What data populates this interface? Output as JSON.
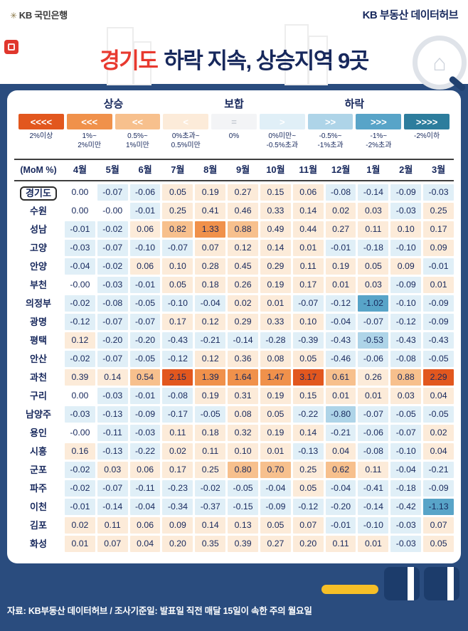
{
  "header": {
    "bank_logo_text": "KB 국민은행",
    "datahub_logo_text": "KB 부동산 데이터허브"
  },
  "title": {
    "highlight": "경기도",
    "rest": "하락 지속, 상승지역 9곳"
  },
  "legend": {
    "groups": [
      {
        "label": "상승",
        "span": 4
      },
      {
        "label": "보합",
        "span": 1
      },
      {
        "label": "하락",
        "span": 4
      }
    ],
    "tiers": [
      {
        "symbol": "<<<<",
        "label": "2%이상",
        "color": "#e2571e",
        "symbol_color": "#ffffff"
      },
      {
        "symbol": "<<<",
        "label": "1%~\n2%미만",
        "color": "#f0914b",
        "symbol_color": "#ffffff"
      },
      {
        "symbol": "<<",
        "label": "0.5%~\n1%미만",
        "color": "#f7c08d",
        "symbol_color": "#ffffff"
      },
      {
        "symbol": "<",
        "label": "0%초과~\n0.5%미만",
        "color": "#fcebd9",
        "symbol_color": "#ffffff"
      },
      {
        "symbol": "=",
        "label": "0%",
        "color": "#f3f4f6",
        "symbol_color": "#c4cad2"
      },
      {
        "symbol": ">",
        "label": "0%미만~\n-0.5%초과",
        "color": "#e0eff7",
        "symbol_color": "#ffffff"
      },
      {
        "symbol": ">>",
        "label": "-0.5%~\n-1%초과",
        "color": "#aed4e8",
        "symbol_color": "#ffffff"
      },
      {
        "symbol": ">>>",
        "label": "-1%~\n-2%초과",
        "color": "#58a4c8",
        "symbol_color": "#ffffff"
      },
      {
        "symbol": ">>>>",
        "label": "-2%이하",
        "color": "#2d7d9d",
        "symbol_color": "#ffffff"
      }
    ]
  },
  "chart_data": {
    "type": "heatmap",
    "title": "경기도 하락 지속, 상승지역 9곳",
    "unit": "(MoM %)",
    "legend_position": "top",
    "x_categories": [
      "4월",
      "5월",
      "6월",
      "7월",
      "8월",
      "9월",
      "10월",
      "11월",
      "12월",
      "1월",
      "2월",
      "3월"
    ],
    "rows": [
      {
        "name": "경기도",
        "highlight": true,
        "values": [
          "0.00",
          "-0.07",
          "-0.06",
          "0.05",
          "0.19",
          "0.27",
          "0.15",
          "0.06",
          "-0.08",
          "-0.14",
          "-0.09",
          "-0.03"
        ]
      },
      {
        "name": "수원",
        "highlight": false,
        "values": [
          "0.00",
          "-0.00",
          "-0.01",
          "0.25",
          "0.41",
          "0.46",
          "0.33",
          "0.14",
          "0.02",
          "0.03",
          "-0.03",
          "0.25"
        ]
      },
      {
        "name": "성남",
        "highlight": false,
        "values": [
          "-0.01",
          "-0.02",
          "0.06",
          "0.82",
          "1.33",
          "0.88",
          "0.49",
          "0.44",
          "0.27",
          "0.11",
          "0.10",
          "0.17"
        ]
      },
      {
        "name": "고양",
        "highlight": false,
        "values": [
          "-0.03",
          "-0.07",
          "-0.10",
          "-0.07",
          "0.07",
          "0.12",
          "0.14",
          "0.01",
          "-0.01",
          "-0.18",
          "-0.10",
          "0.09"
        ]
      },
      {
        "name": "안양",
        "highlight": false,
        "values": [
          "-0.04",
          "-0.02",
          "0.06",
          "0.10",
          "0.28",
          "0.45",
          "0.29",
          "0.11",
          "0.19",
          "0.05",
          "0.09",
          "-0.01"
        ]
      },
      {
        "name": "부천",
        "highlight": false,
        "values": [
          "-0.00",
          "-0.03",
          "-0.01",
          "0.05",
          "0.18",
          "0.26",
          "0.19",
          "0.17",
          "0.01",
          "0.03",
          "-0.09",
          "0.01"
        ]
      },
      {
        "name": "의정부",
        "highlight": false,
        "values": [
          "-0.02",
          "-0.08",
          "-0.05",
          "-0.10",
          "-0.04",
          "0.02",
          "0.01",
          "-0.07",
          "-0.12",
          "-1.02",
          "-0.10",
          "-0.09"
        ]
      },
      {
        "name": "광명",
        "highlight": false,
        "values": [
          "-0.12",
          "-0.07",
          "-0.07",
          "0.17",
          "0.12",
          "0.29",
          "0.33",
          "0.10",
          "-0.04",
          "-0.07",
          "-0.12",
          "-0.09"
        ]
      },
      {
        "name": "평택",
        "highlight": false,
        "values": [
          "0.12",
          "-0.20",
          "-0.20",
          "-0.43",
          "-0.21",
          "-0.14",
          "-0.28",
          "-0.39",
          "-0.43",
          "-0.53",
          "-0.43",
          "-0.43"
        ]
      },
      {
        "name": "안산",
        "highlight": false,
        "values": [
          "-0.02",
          "-0.07",
          "-0.05",
          "-0.12",
          "0.12",
          "0.36",
          "0.08",
          "0.05",
          "-0.46",
          "-0.06",
          "-0.08",
          "-0.05"
        ]
      },
      {
        "name": "과천",
        "highlight": false,
        "values": [
          "0.39",
          "0.14",
          "0.54",
          "2.15",
          "1.39",
          "1.64",
          "1.47",
          "3.17",
          "0.61",
          "0.26",
          "0.88",
          "2.29"
        ]
      },
      {
        "name": "구리",
        "highlight": false,
        "values": [
          "0.00",
          "-0.03",
          "-0.01",
          "-0.08",
          "0.19",
          "0.31",
          "0.19",
          "0.15",
          "0.01",
          "0.01",
          "0.03",
          "0.04"
        ]
      },
      {
        "name": "남양주",
        "highlight": false,
        "values": [
          "-0.03",
          "-0.13",
          "-0.09",
          "-0.17",
          "-0.05",
          "0.08",
          "0.05",
          "-0.22",
          "-0.80",
          "-0.07",
          "-0.05",
          "-0.05"
        ]
      },
      {
        "name": "용인",
        "highlight": false,
        "values": [
          "-0.00",
          "-0.11",
          "-0.03",
          "0.11",
          "0.18",
          "0.32",
          "0.19",
          "0.14",
          "-0.21",
          "-0.06",
          "-0.07",
          "0.02"
        ]
      },
      {
        "name": "시흥",
        "highlight": false,
        "values": [
          "0.16",
          "-0.13",
          "-0.22",
          "0.02",
          "0.11",
          "0.10",
          "0.01",
          "-0.13",
          "0.04",
          "-0.08",
          "-0.10",
          "0.04"
        ]
      },
      {
        "name": "군포",
        "highlight": false,
        "values": [
          "-0.02",
          "0.03",
          "0.06",
          "0.17",
          "0.25",
          "0.80",
          "0.70",
          "0.25",
          "0.62",
          "0.11",
          "-0.04",
          "-0.21"
        ]
      },
      {
        "name": "파주",
        "highlight": false,
        "values": [
          "-0.02",
          "-0.07",
          "-0.11",
          "-0.23",
          "-0.02",
          "-0.05",
          "-0.04",
          "0.05",
          "-0.04",
          "-0.41",
          "-0.18",
          "-0.09"
        ]
      },
      {
        "name": "이천",
        "highlight": false,
        "values": [
          "-0.01",
          "-0.14",
          "-0.04",
          "-0.34",
          "-0.37",
          "-0.15",
          "-0.09",
          "-0.12",
          "-0.20",
          "-0.14",
          "-0.42",
          "-1.13"
        ]
      },
      {
        "name": "김포",
        "highlight": false,
        "values": [
          "0.02",
          "0.11",
          "0.06",
          "0.09",
          "0.14",
          "0.13",
          "0.05",
          "0.07",
          "-0.01",
          "-0.10",
          "-0.03",
          "0.07"
        ]
      },
      {
        "name": "화성",
        "highlight": false,
        "values": [
          "0.01",
          "0.07",
          "0.04",
          "0.20",
          "0.35",
          "0.39",
          "0.27",
          "0.20",
          "0.11",
          "0.01",
          "-0.03",
          "0.05"
        ]
      }
    ]
  },
  "footer": {
    "text": "자료: KB부동산 데이터허브 / 조사기준일: 발표일 직전 매달 15일이 속한 주의 월요일"
  },
  "colors": {
    "background_navy": "#2a4c7e",
    "card_white": "#ffffff",
    "title_red": "#e8392f",
    "text_navy": "#17285c",
    "flat_cell": "#ffffff",
    "accent_yellow": "#f6bf27",
    "decor_navy": "#1c3c6b",
    "footer_text": "#ffffff"
  }
}
